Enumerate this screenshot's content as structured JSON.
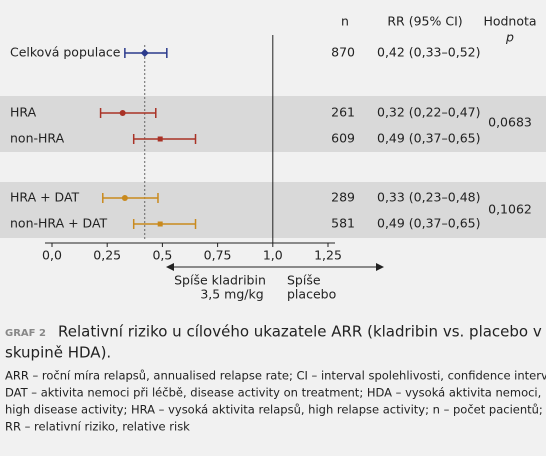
{
  "chart_data": {
    "type": "forest",
    "header": {
      "n": "n",
      "rr": "RR (95% CI)",
      "p_line1": "Hodnota",
      "p_line2": "p"
    },
    "categories": [
      "Celková populace",
      "HRA",
      "non-HRA",
      "HRA + DAT",
      "non-HRA + DAT"
    ],
    "values": [
      0.42,
      0.32,
      0.49,
      0.33,
      0.49
    ],
    "lower": [
      0.33,
      0.22,
      0.37,
      0.23,
      0.37
    ],
    "upper": [
      0.52,
      0.47,
      0.65,
      0.48,
      0.65
    ],
    "value_labels": [
      "0,42 (0,33–0,52)",
      "0,32 (0,22–0,47)",
      "0,49 (0,37–0,65)",
      "0,33 (0,23–0,48)",
      "0,49 (0,37–0,65)"
    ],
    "n": [
      870,
      261,
      609,
      289,
      581
    ],
    "colors": [
      "#2b3a8c",
      "#a93226",
      "#a93226",
      "#c98a1e",
      "#c98a1e"
    ],
    "markers": [
      "diamond",
      "circle",
      "square",
      "circle",
      "square"
    ],
    "p_values": [
      "0,0683",
      "0,1062"
    ],
    "xlim": [
      0,
      1.25
    ],
    "xticks": [
      {
        "value": 0,
        "label": "0,0"
      },
      {
        "value": 0.25,
        "label": "0,25"
      },
      {
        "value": 0.5,
        "label": "0,5"
      },
      {
        "value": 0.75,
        "label": "0,75"
      },
      {
        "value": 1,
        "label": "1,0"
      },
      {
        "value": 1.25,
        "label": "1,25"
      }
    ],
    "null_line": 1,
    "favors_left": [
      "Spíše kladribin",
      "3,5 mg/kg"
    ],
    "favors_right": [
      "Spíše",
      "placebo"
    ]
  },
  "caption": {
    "label": "GRAF 2",
    "lines": [
      "Relativní riziko u cílového ukazatele ARR (kladribin vs. placebo v pod-",
      "skupině HDA)."
    ]
  },
  "footnote": [
    "ARR – roční míra relapsů, annualised relapse rate; CI – interval spolehlivosti, confidence interval;",
    "DAT – aktivita nemoci při léčbě, disease activity on treatment; HDA – vysoká aktivita nemoci,",
    "high disease activity; HRA – vysoká aktivita relapsů, high relapse activity; n – počet pacientů;",
    "RR – relativní riziko, relative risk"
  ]
}
